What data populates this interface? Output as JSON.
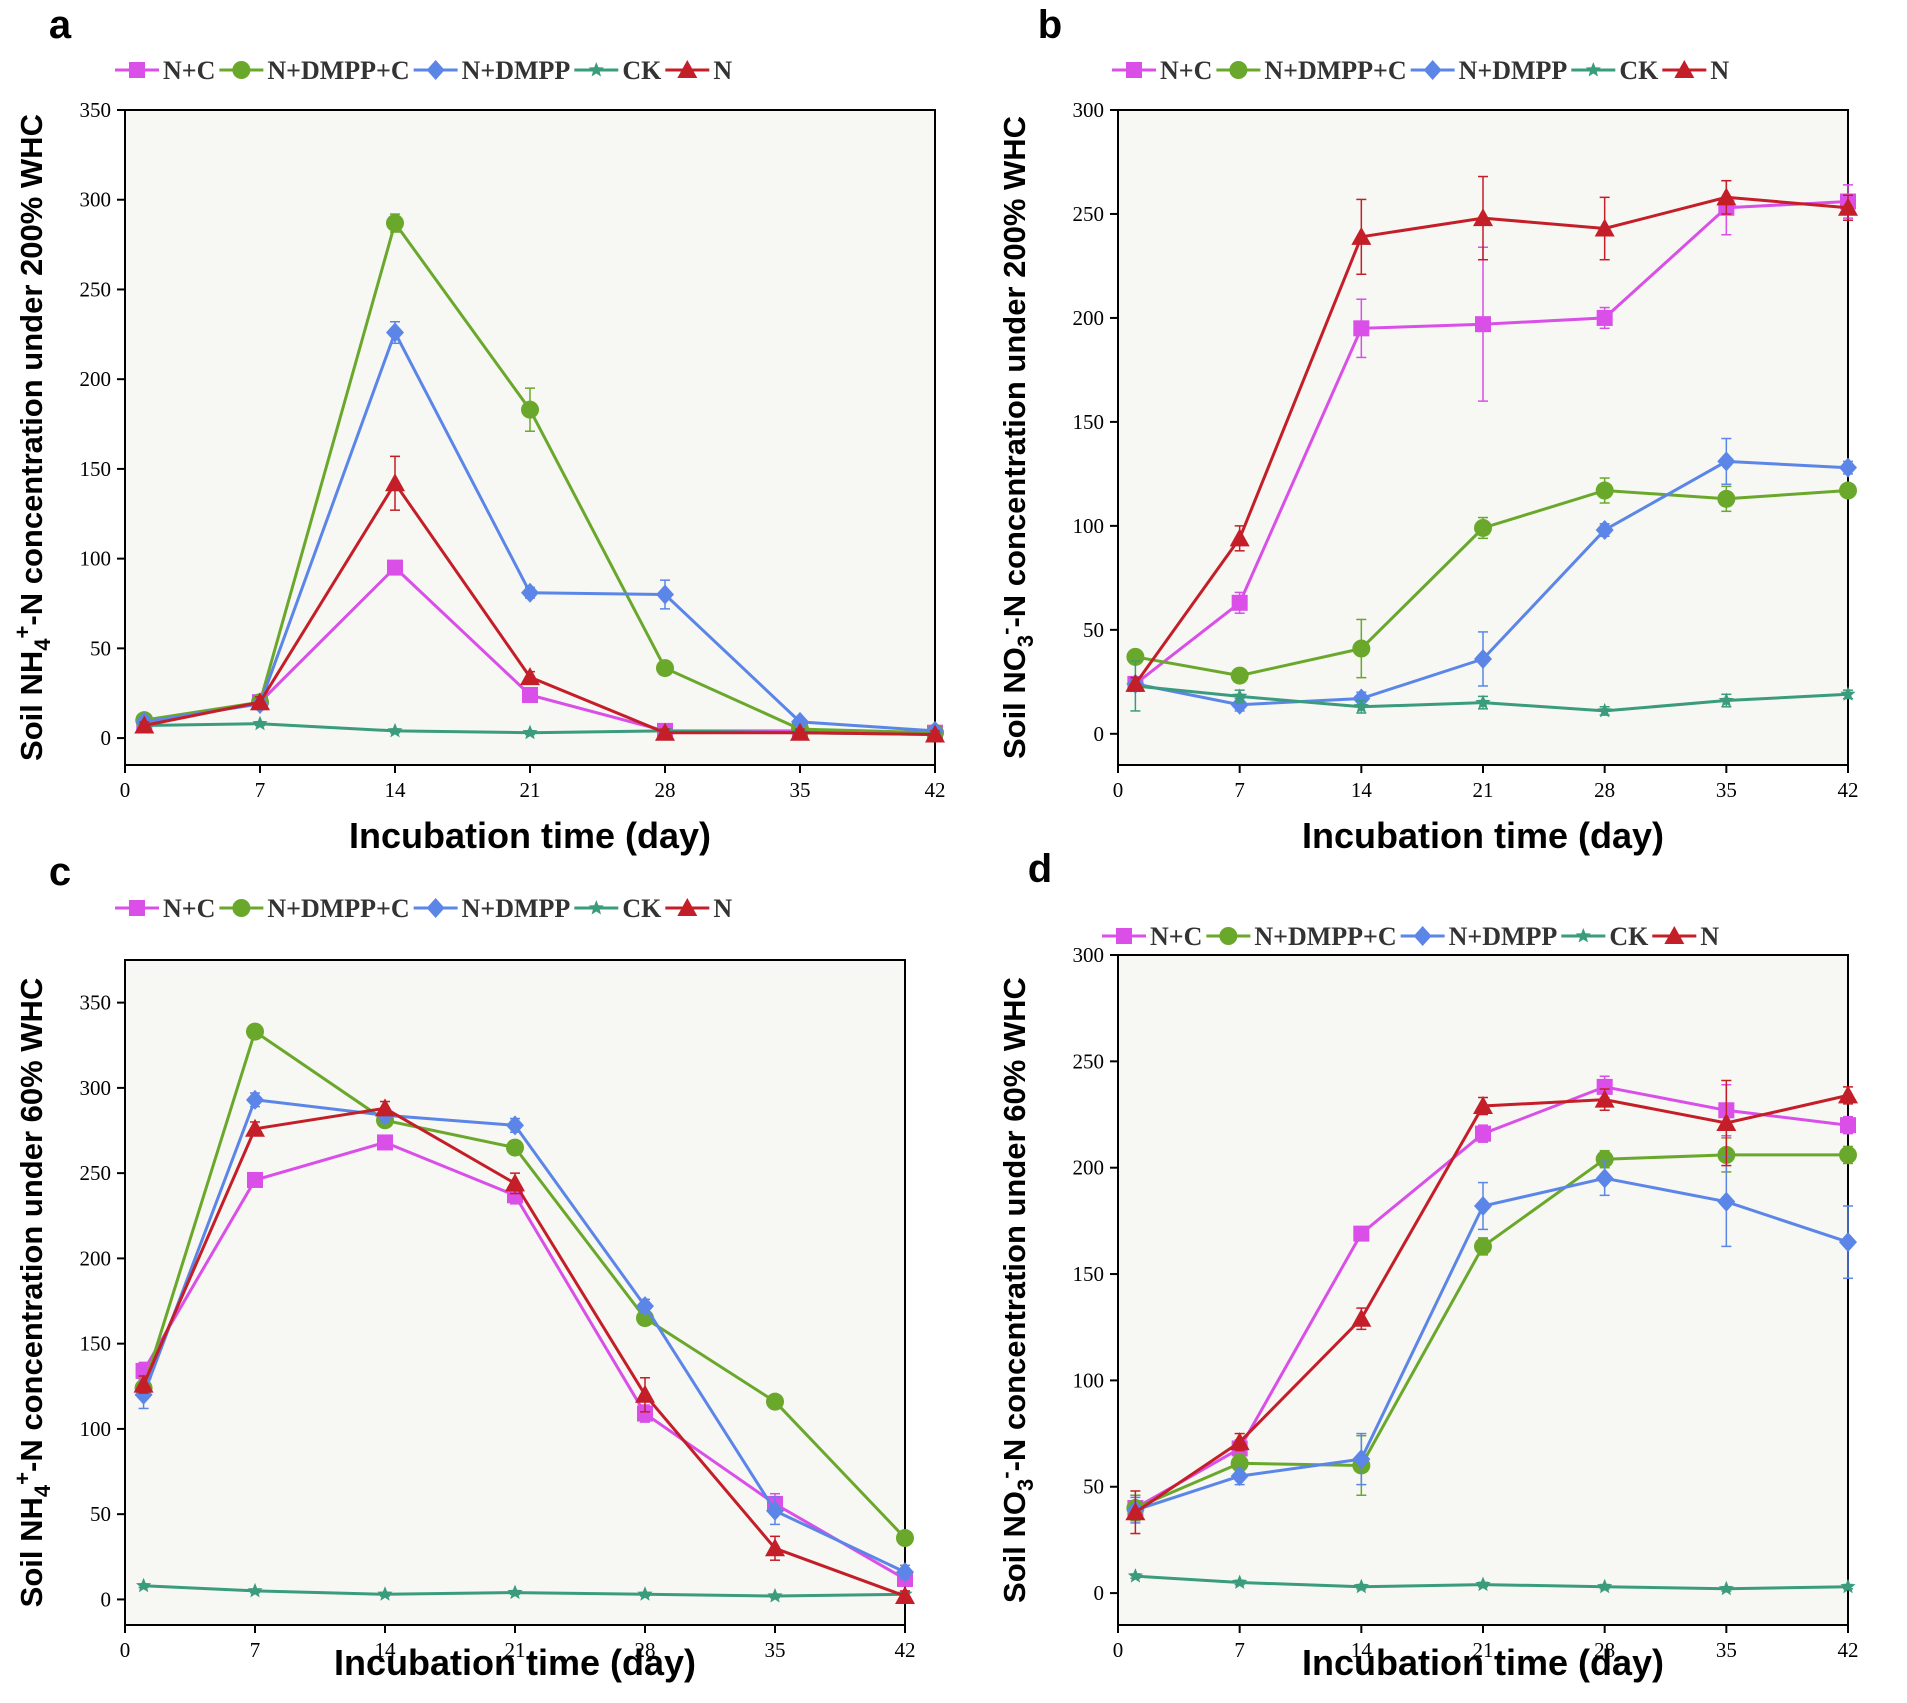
{
  "figure": {
    "colors": {
      "N+C": "#d94fe8",
      "N+DMPP+C": "#6aa82c",
      "N+DMPP": "#5b86e8",
      "CK": "#3a9c7c",
      "N": "#c41e28",
      "plot_bg": "#f7f7f4",
      "axis": "#000000"
    }
  },
  "chart_data": [
    {
      "type": "line",
      "panel_label": "a",
      "title": "",
      "xlabel": "Incubation time (day)",
      "ylabel": "Soil NH4+-N concentration under 200% WHC",
      "ylabel_parts": {
        "pre": "Soil NH",
        "sub": "4",
        "sup": "+",
        "post": "-N concentration under 200% WHC"
      },
      "xlim": [
        0,
        42
      ],
      "ylim": [
        -15,
        350
      ],
      "xticks": [
        0,
        7,
        14,
        21,
        28,
        35,
        42
      ],
      "yticks": [
        0,
        50,
        100,
        150,
        200,
        250,
        300,
        350
      ],
      "x": [
        1,
        7,
        14,
        21,
        28,
        35,
        42
      ],
      "legend_position": "top",
      "series": [
        {
          "name": "N+C",
          "marker": "square",
          "values": [
            8,
            20,
            95,
            24,
            4,
            4,
            3
          ],
          "errors": [
            3,
            3,
            3,
            3,
            2,
            2,
            2
          ]
        },
        {
          "name": "N+DMPP+C",
          "marker": "circle",
          "values": [
            10,
            20,
            287,
            183,
            39,
            5,
            3
          ],
          "errors": [
            3,
            3,
            5,
            12,
            3,
            2,
            2
          ]
        },
        {
          "name": "N+DMPP",
          "marker": "diamond",
          "values": [
            9,
            19,
            226,
            81,
            80,
            9,
            4
          ],
          "errors": [
            3,
            3,
            6,
            3,
            8,
            2,
            2
          ]
        },
        {
          "name": "CK",
          "marker": "star",
          "values": [
            7,
            8,
            4,
            3,
            4,
            3,
            2
          ],
          "errors": [
            1,
            1,
            1,
            1,
            1,
            1,
            1
          ]
        },
        {
          "name": "N",
          "marker": "triangle",
          "values": [
            7,
            20,
            142,
            34,
            3,
            3,
            2
          ],
          "errors": [
            2,
            3,
            15,
            3,
            2,
            2,
            2
          ]
        }
      ]
    },
    {
      "type": "line",
      "panel_label": "b",
      "title": "",
      "xlabel": "Incubation time (day)",
      "ylabel": "Soil NO3--N concentration under 200% WHC",
      "ylabel_parts": {
        "pre": "Soil NO",
        "sub": "3",
        "sup": "-",
        "post": "-N concentration under 200% WHC"
      },
      "xlim": [
        0,
        42
      ],
      "ylim": [
        -15,
        300
      ],
      "xticks": [
        0,
        7,
        14,
        21,
        28,
        35,
        42
      ],
      "yticks": [
        0,
        50,
        100,
        150,
        200,
        250,
        300
      ],
      "x": [
        1,
        7,
        14,
        21,
        28,
        35,
        42
      ],
      "legend_position": "top",
      "series": [
        {
          "name": "N+C",
          "marker": "square",
          "values": [
            24,
            63,
            195,
            197,
            200,
            253,
            256
          ],
          "errors": [
            3,
            5,
            14,
            37,
            5,
            13,
            8
          ]
        },
        {
          "name": "N+DMPP+C",
          "marker": "circle",
          "values": [
            37,
            28,
            41,
            99,
            117,
            113,
            117
          ],
          "errors": [
            3,
            3,
            14,
            5,
            6,
            6,
            3
          ]
        },
        {
          "name": "N+DMPP",
          "marker": "diamond",
          "values": [
            24,
            14,
            17,
            36,
            98,
            131,
            128
          ],
          "errors": [
            3,
            3,
            3,
            13,
            3,
            11,
            3
          ]
        },
        {
          "name": "CK",
          "marker": "star",
          "values": [
            23,
            18,
            13,
            15,
            11,
            16,
            19
          ],
          "errors": [
            12,
            3,
            3,
            3,
            2,
            3,
            2
          ]
        },
        {
          "name": "N",
          "marker": "triangle",
          "values": [
            24,
            94,
            239,
            248,
            243,
            258,
            253
          ],
          "errors": [
            3,
            6,
            18,
            20,
            15,
            8,
            6
          ]
        }
      ]
    },
    {
      "type": "line",
      "panel_label": "c",
      "title": "",
      "xlabel": "Incubation time (day)",
      "ylabel": "Soil NH4+-N concentration under 60% WHC",
      "ylabel_parts": {
        "pre": "Soil NH",
        "sub": "4",
        "sup": "+",
        "post": "-N concentration under 60% WHC"
      },
      "xlim": [
        0,
        42
      ],
      "ylim": [
        -15,
        375
      ],
      "xticks": [
        0,
        7,
        14,
        21,
        28,
        35,
        42
      ],
      "yticks": [
        0,
        50,
        100,
        150,
        200,
        250,
        300,
        350
      ],
      "x": [
        1,
        7,
        14,
        21,
        28,
        35,
        42
      ],
      "legend_position": "top",
      "series": [
        {
          "name": "N+C",
          "marker": "square",
          "values": [
            134,
            246,
            268,
            237,
            109,
            56,
            12
          ],
          "errors": [
            5,
            4,
            4,
            5,
            5,
            6,
            3
          ]
        },
        {
          "name": "N+DMPP+C",
          "marker": "circle",
          "values": [
            124,
            333,
            281,
            265,
            165,
            116,
            36
          ],
          "errors": [
            5,
            4,
            4,
            4,
            4,
            4,
            4
          ]
        },
        {
          "name": "N+DMPP",
          "marker": "diamond",
          "values": [
            120,
            293,
            284,
            278,
            172,
            52,
            16
          ],
          "errors": [
            8,
            4,
            4,
            4,
            4,
            8,
            4
          ]
        },
        {
          "name": "CK",
          "marker": "star",
          "values": [
            8,
            5,
            3,
            4,
            3,
            2,
            3
          ],
          "errors": [
            1,
            1,
            1,
            1,
            1,
            1,
            1
          ]
        },
        {
          "name": "N",
          "marker": "triangle",
          "values": [
            126,
            276,
            288,
            244,
            120,
            30,
            2
          ],
          "errors": [
            5,
            4,
            4,
            6,
            10,
            7,
            3
          ]
        }
      ]
    },
    {
      "type": "line",
      "panel_label": "d",
      "title": "",
      "xlabel": "Incubation time (day)",
      "ylabel": "Soil NO3--N concentration under 60% WHC",
      "ylabel_parts": {
        "pre": "Soil NO",
        "sub": "3",
        "sup": "-",
        "post": "-N concentration under 60% WHC"
      },
      "xlim": [
        0,
        42
      ],
      "ylim": [
        -15,
        300
      ],
      "xticks": [
        0,
        7,
        14,
        21,
        28,
        35,
        42
      ],
      "yticks": [
        0,
        50,
        100,
        150,
        200,
        250,
        300
      ],
      "x": [
        1,
        7,
        14,
        21,
        28,
        35,
        42
      ],
      "legend_position": "top",
      "series": [
        {
          "name": "N+C",
          "marker": "square",
          "values": [
            40,
            68,
            169,
            216,
            238,
            227,
            220
          ],
          "errors": [
            6,
            4,
            3,
            4,
            5,
            12,
            4
          ]
        },
        {
          "name": "N+DMPP+C",
          "marker": "circle",
          "values": [
            40,
            61,
            60,
            163,
            204,
            206,
            206
          ],
          "errors": [
            6,
            4,
            14,
            4,
            4,
            8,
            4
          ]
        },
        {
          "name": "N+DMPP",
          "marker": "diamond",
          "values": [
            39,
            55,
            63,
            182,
            195,
            184,
            165
          ],
          "errors": [
            6,
            4,
            12,
            11,
            8,
            21,
            17
          ]
        },
        {
          "name": "CK",
          "marker": "star",
          "values": [
            8,
            5,
            3,
            4,
            3,
            2,
            3
          ],
          "errors": [
            1,
            1,
            1,
            1,
            1,
            1,
            1
          ]
        },
        {
          "name": "N",
          "marker": "triangle",
          "values": [
            38,
            71,
            129,
            229,
            232,
            221,
            234
          ],
          "errors": [
            10,
            4,
            5,
            4,
            5,
            20,
            4
          ]
        }
      ]
    }
  ]
}
